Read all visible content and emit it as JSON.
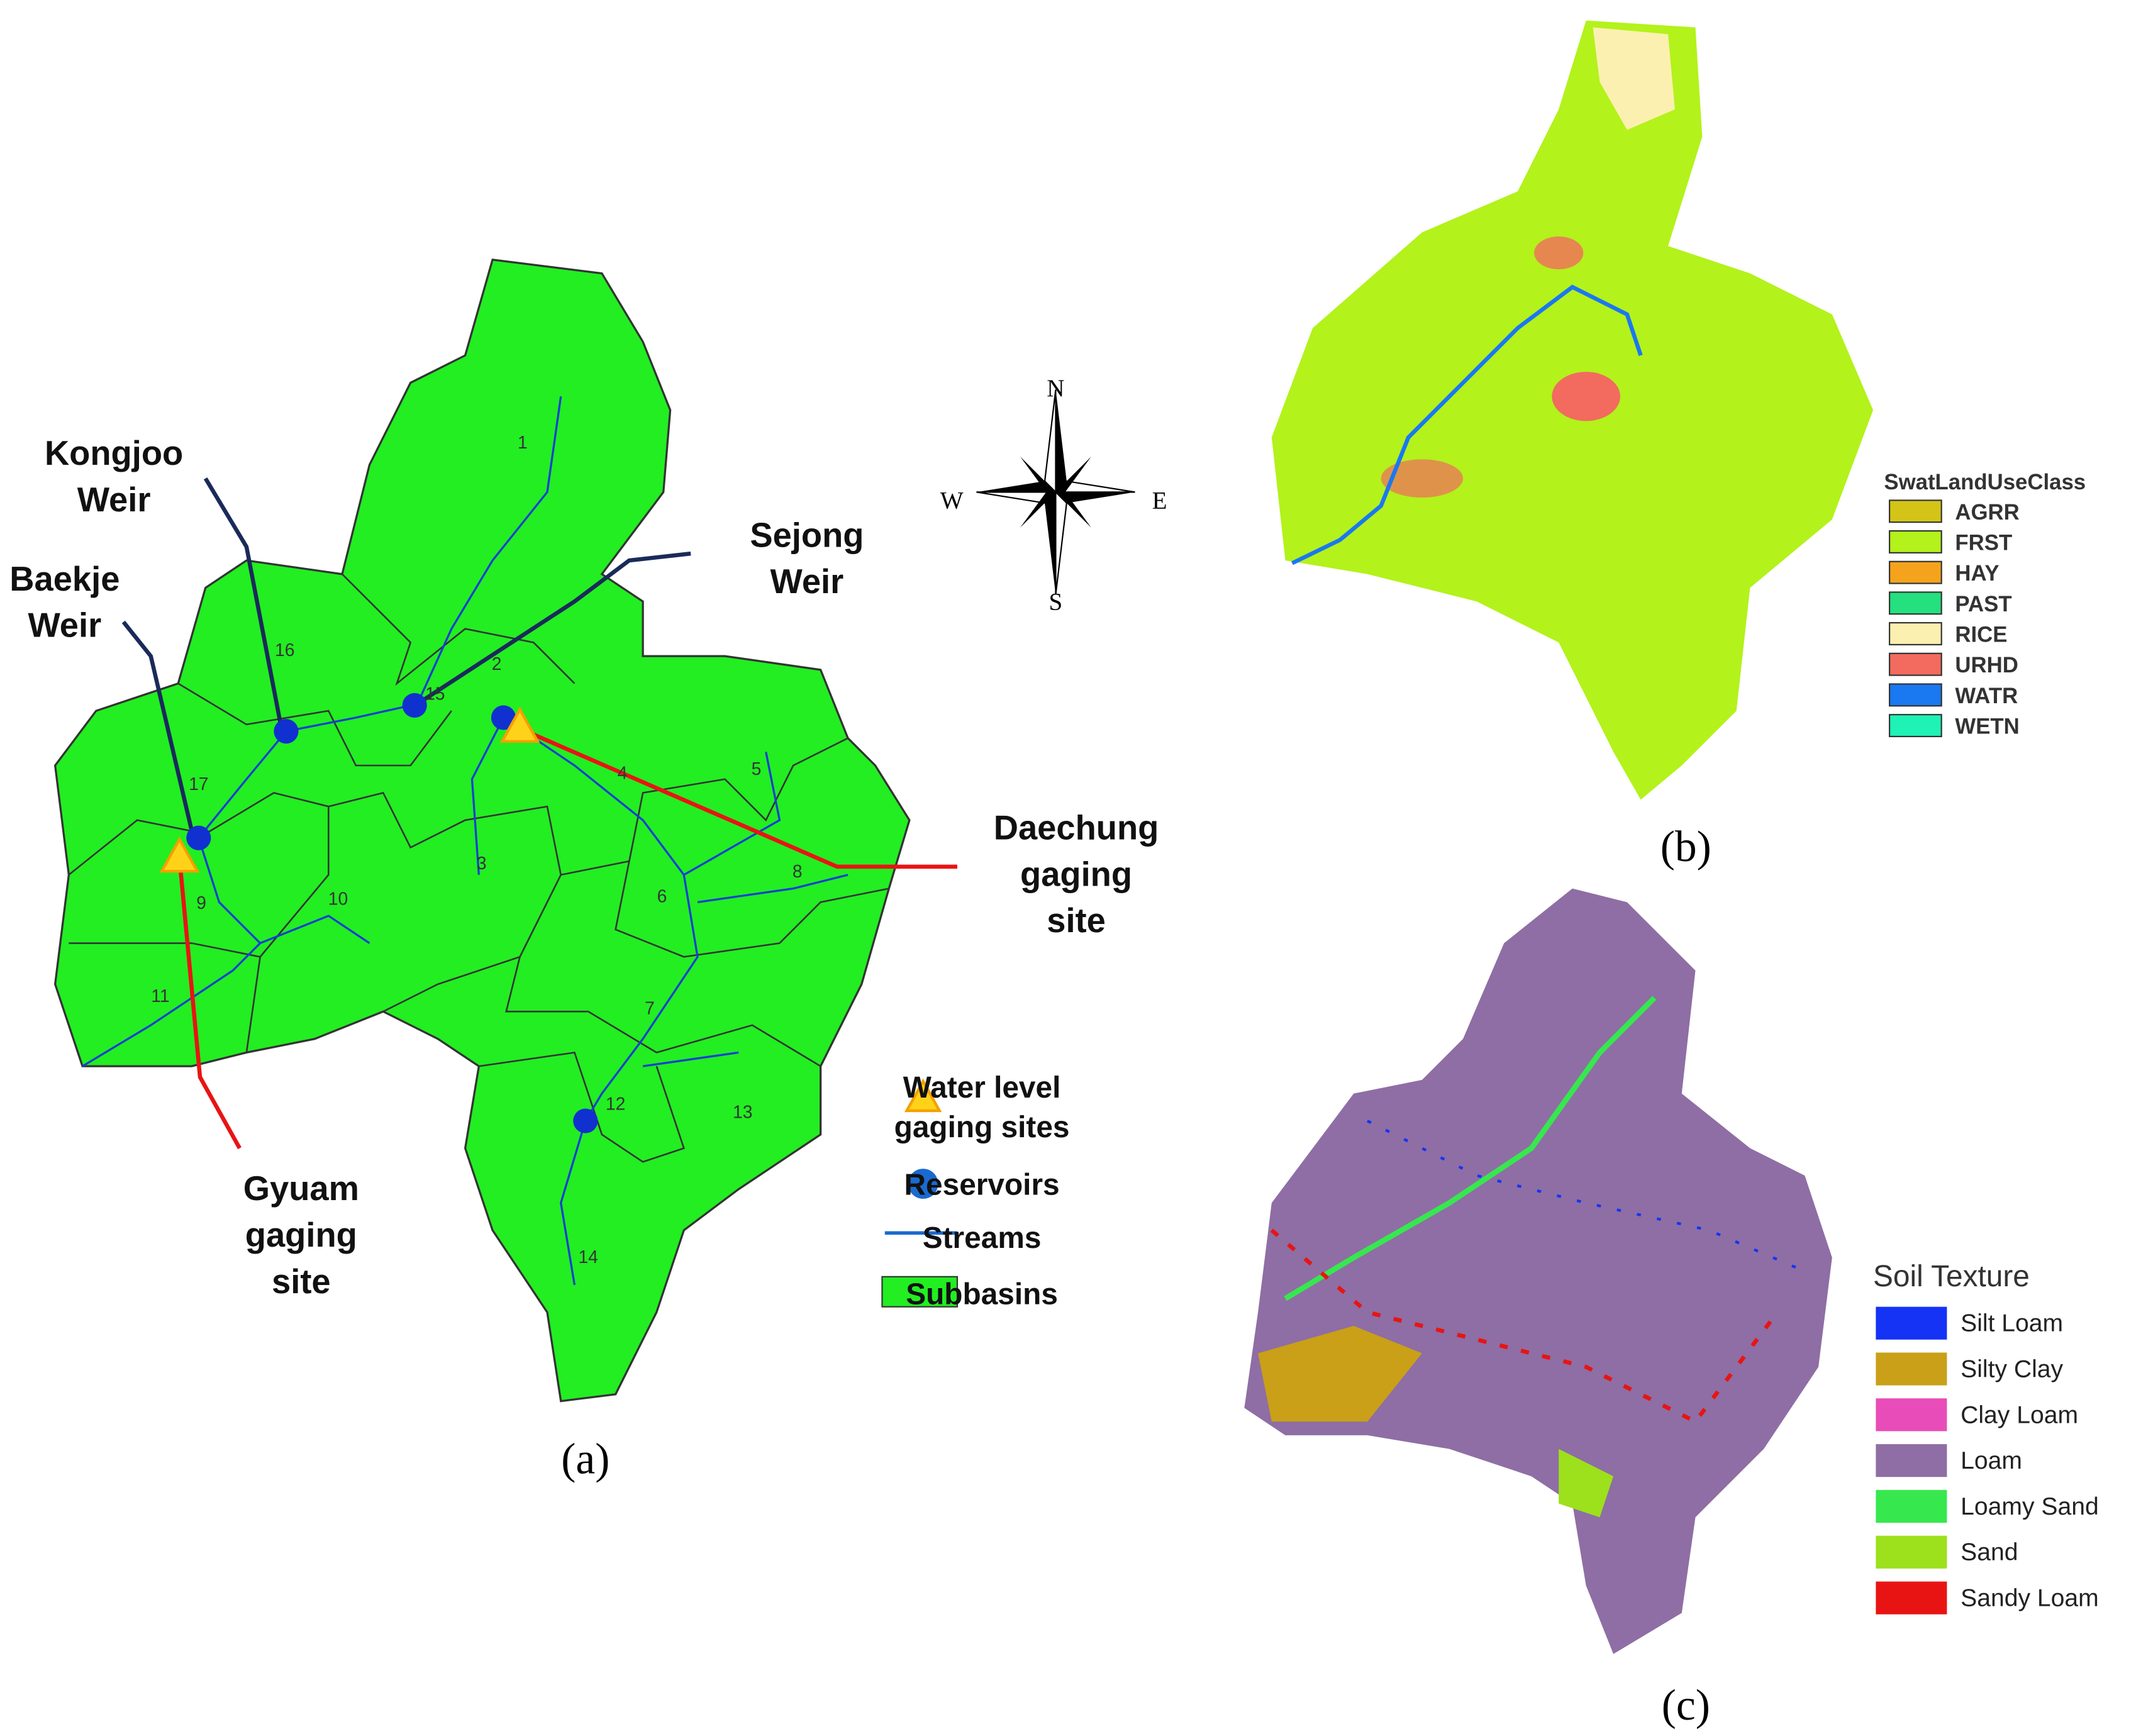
{
  "panel_a": {
    "caption": "(a)",
    "subbasin_numbers": [
      "1",
      "2",
      "3",
      "4",
      "5",
      "6",
      "7",
      "8",
      "9",
      "10",
      "11",
      "12",
      "13",
      "14",
      "15",
      "16",
      "17"
    ],
    "sites": [
      {
        "lines": [
          "Kongjoo",
          "Weir"
        ]
      },
      {
        "lines": [
          "Baekje",
          "Weir"
        ]
      },
      {
        "lines": [
          "Sejong",
          "Weir"
        ]
      },
      {
        "lines": [
          "Daechung",
          "gaging",
          "site"
        ]
      },
      {
        "lines": [
          "Gyuam",
          "gaging",
          "site"
        ]
      }
    ],
    "legend": [
      {
        "lines": [
          "Water level",
          "gaging sites"
        ]
      },
      {
        "lines": [
          "Reservoirs"
        ]
      },
      {
        "lines": [
          "Streams"
        ]
      },
      {
        "lines": [
          "Subbasins"
        ]
      }
    ]
  },
  "compass": {
    "north": "N",
    "south": "S",
    "east": "E",
    "west": "W"
  },
  "panel_b": {
    "caption": "(b)",
    "legend_title": "SwatLandUseClass",
    "legend": [
      {
        "label": "AGRR",
        "color": "#d4c418"
      },
      {
        "label": "FRST",
        "color": "#b3f21b"
      },
      {
        "label": "HAY",
        "color": "#f5a31c"
      },
      {
        "label": "PAST",
        "color": "#24e07e"
      },
      {
        "label": "RICE",
        "color": "#fbf0b0"
      },
      {
        "label": "URHD",
        "color": "#f26b5e"
      },
      {
        "label": "WATR",
        "color": "#1a78f0"
      },
      {
        "label": "WETN",
        "color": "#1ff2b5"
      }
    ]
  },
  "panel_c": {
    "caption": "(c)",
    "legend_title": "Soil Texture",
    "legend": [
      {
        "label": "Silt Loam",
        "color": "#1433f5"
      },
      {
        "label": "Silty Clay",
        "color": "#c9a018"
      },
      {
        "label": "Clay Loam",
        "color": "#e84cb8"
      },
      {
        "label": "Loam",
        "color": "#8e6ea4"
      },
      {
        "label": "Loamy Sand",
        "color": "#36e84e"
      },
      {
        "label": "Sand",
        "color": "#9de01c"
      },
      {
        "label": "Sandy Loam",
        "color": "#e81414"
      }
    ]
  }
}
